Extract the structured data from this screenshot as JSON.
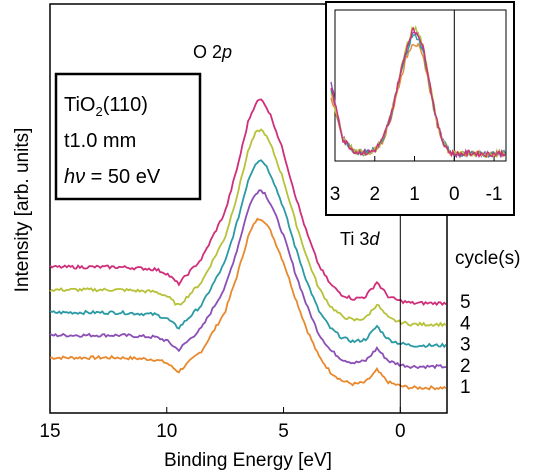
{
  "chart_data": {
    "type": "line",
    "xlabel": "Binding Energy [eV]",
    "ylabel": "Intensity [arb. units]",
    "xlim": [
      15,
      -2
    ],
    "x_reversed": true,
    "xticks": [
      15,
      10,
      5,
      0
    ],
    "peak_labels": {
      "o2p": {
        "prefix": "O 2",
        "italic": "p"
      },
      "ti3d": {
        "prefix": "Ti 3",
        "italic": "d"
      }
    },
    "legend_title": "cycle(s)",
    "infobox": {
      "line1_main": "TiO",
      "line1_sub": "2",
      "line1_rest": "(110)",
      "line2": "t1.0 mm",
      "line3_italic": "hν",
      "line3_rest": " = 50 eV"
    },
    "series": [
      {
        "name": "1",
        "color": "#e8892e",
        "baseline": 0.0,
        "peak": 9.5,
        "x": [
          15,
          12,
          10.5,
          10,
          9.5,
          8.5,
          7.5,
          7,
          6.5,
          6.2,
          6,
          5.8,
          5.5,
          5,
          4.5,
          4,
          3.5,
          3,
          2.5,
          2,
          1.5,
          1.2,
          1,
          0.8,
          0.5,
          0,
          -0.5,
          -1,
          -2
        ],
        "y": [
          1.6,
          1.6,
          1.5,
          1.3,
          0.8,
          2.0,
          4.2,
          6.2,
          8.5,
          9.3,
          9.5,
          9.3,
          8.6,
          7.0,
          5.0,
          3.2,
          1.7,
          0.8,
          0.3,
          0.1,
          0.2,
          0.6,
          0.9,
          0.6,
          0.2,
          0.0,
          -0.1,
          -0.1,
          -0.1
        ]
      },
      {
        "name": "2",
        "color": "#8b4fb6",
        "baseline": 1.2,
        "peak": 9.9,
        "x": [
          15,
          12,
          10.5,
          10,
          9.5,
          8.5,
          7.5,
          7,
          6.5,
          6.2,
          6,
          5.8,
          5.5,
          5,
          4.5,
          4,
          3.5,
          3,
          2.5,
          2,
          1.5,
          1.2,
          1,
          0.8,
          0.5,
          0,
          -0.5,
          -1,
          -2
        ],
        "y": [
          1.6,
          1.6,
          1.5,
          1.3,
          0.8,
          2.0,
          4.2,
          6.2,
          8.5,
          9.3,
          9.5,
          9.3,
          8.6,
          7.0,
          5.0,
          3.2,
          1.7,
          0.8,
          0.3,
          0.1,
          0.2,
          0.6,
          0.9,
          0.6,
          0.2,
          0.0,
          -0.1,
          -0.1,
          -0.1
        ]
      },
      {
        "name": "3",
        "color": "#2a9aa4",
        "baseline": 2.4,
        "peak": 10.4,
        "x": [
          15,
          12,
          10.5,
          10,
          9.5,
          8.5,
          7.5,
          7,
          6.5,
          6.2,
          6,
          5.8,
          5.5,
          5,
          4.5,
          4,
          3.5,
          3,
          2.5,
          2,
          1.5,
          1.2,
          1,
          0.8,
          0.5,
          0,
          -0.5,
          -1,
          -2
        ],
        "y": [
          1.6,
          1.6,
          1.5,
          1.3,
          0.8,
          2.0,
          4.2,
          6.2,
          8.5,
          9.3,
          9.5,
          9.3,
          8.6,
          7.0,
          5.0,
          3.2,
          1.7,
          0.8,
          0.3,
          0.1,
          0.2,
          0.6,
          0.9,
          0.6,
          0.2,
          0.0,
          -0.1,
          -0.1,
          -0.1
        ]
      },
      {
        "name": "4",
        "color": "#b7c23a",
        "baseline": 3.6,
        "peak": 10.9,
        "x": [
          15,
          12,
          10.5,
          10,
          9.5,
          8.5,
          7.5,
          7,
          6.5,
          6.2,
          6,
          5.8,
          5.5,
          5,
          4.5,
          4,
          3.5,
          3,
          2.5,
          2,
          1.5,
          1.2,
          1,
          0.8,
          0.5,
          0,
          -0.5,
          -1,
          -2
        ],
        "y": [
          1.6,
          1.6,
          1.5,
          1.3,
          0.8,
          2.0,
          4.2,
          6.2,
          8.5,
          9.3,
          9.5,
          9.3,
          8.6,
          7.0,
          5.0,
          3.2,
          1.7,
          0.8,
          0.3,
          0.1,
          0.2,
          0.6,
          0.9,
          0.6,
          0.2,
          0.0,
          -0.1,
          -0.1,
          -0.1
        ]
      },
      {
        "name": "5",
        "color": "#cf2f7a",
        "baseline": 4.8,
        "peak": 11.4,
        "x": [
          15,
          12,
          10.5,
          10,
          9.5,
          8.5,
          7.5,
          7,
          6.5,
          6.2,
          6,
          5.8,
          5.5,
          5,
          4.5,
          4,
          3.5,
          3,
          2.5,
          2,
          1.5,
          1.2,
          1,
          0.8,
          0.5,
          0,
          -0.5,
          -1,
          -2
        ],
        "y": [
          1.6,
          1.6,
          1.5,
          1.3,
          0.8,
          2.0,
          4.2,
          6.2,
          8.5,
          9.3,
          9.5,
          9.3,
          8.6,
          7.0,
          5.0,
          3.2,
          1.7,
          0.8,
          0.3,
          0.1,
          0.2,
          0.6,
          0.9,
          0.6,
          0.2,
          0.0,
          -0.1,
          -0.1,
          -0.1
        ]
      }
    ],
    "inset": {
      "type": "line",
      "xlim": [
        3,
        -1.3
      ],
      "xticks": [
        3,
        2,
        1,
        0,
        -1
      ],
      "x_reversed": true,
      "x": [
        3.1,
        2.8,
        2.5,
        2.2,
        2.0,
        1.8,
        1.6,
        1.4,
        1.2,
        1.05,
        0.9,
        0.75,
        0.6,
        0.45,
        0.3,
        0.1,
        -0.1,
        -0.4,
        -0.8,
        -1.3
      ],
      "series": [
        {
          "name": "1",
          "color": "#e8892e",
          "y": [
            0.45,
            0.12,
            0.04,
            0.03,
            0.05,
            0.12,
            0.28,
            0.52,
            0.74,
            0.85,
            0.82,
            0.7,
            0.48,
            0.26,
            0.12,
            0.03,
            0.02,
            0.03,
            0.02,
            0.03
          ]
        },
        {
          "name": "2",
          "color": "#8b4fb6",
          "y": [
            0.55,
            0.14,
            0.04,
            0.03,
            0.05,
            0.13,
            0.3,
            0.56,
            0.8,
            0.93,
            0.9,
            0.76,
            0.52,
            0.28,
            0.12,
            0.03,
            0.02,
            0.03,
            0.02,
            0.03
          ]
        },
        {
          "name": "3",
          "color": "#2a9aa4",
          "y": [
            0.5,
            0.13,
            0.04,
            0.03,
            0.05,
            0.13,
            0.3,
            0.55,
            0.78,
            0.9,
            0.88,
            0.74,
            0.5,
            0.27,
            0.12,
            0.04,
            0.02,
            0.03,
            0.02,
            0.03
          ]
        },
        {
          "name": "4",
          "color": "#b7c23a",
          "y": [
            0.48,
            0.13,
            0.04,
            0.03,
            0.05,
            0.13,
            0.31,
            0.57,
            0.82,
            0.96,
            0.93,
            0.78,
            0.53,
            0.28,
            0.12,
            0.03,
            0.02,
            0.03,
            0.02,
            0.03
          ]
        },
        {
          "name": "5",
          "color": "#cf2f7a",
          "y": [
            0.52,
            0.13,
            0.04,
            0.03,
            0.05,
            0.13,
            0.3,
            0.56,
            0.81,
            0.94,
            0.91,
            0.77,
            0.52,
            0.28,
            0.12,
            0.03,
            0.02,
            0.03,
            0.02,
            0.03
          ]
        }
      ]
    }
  }
}
